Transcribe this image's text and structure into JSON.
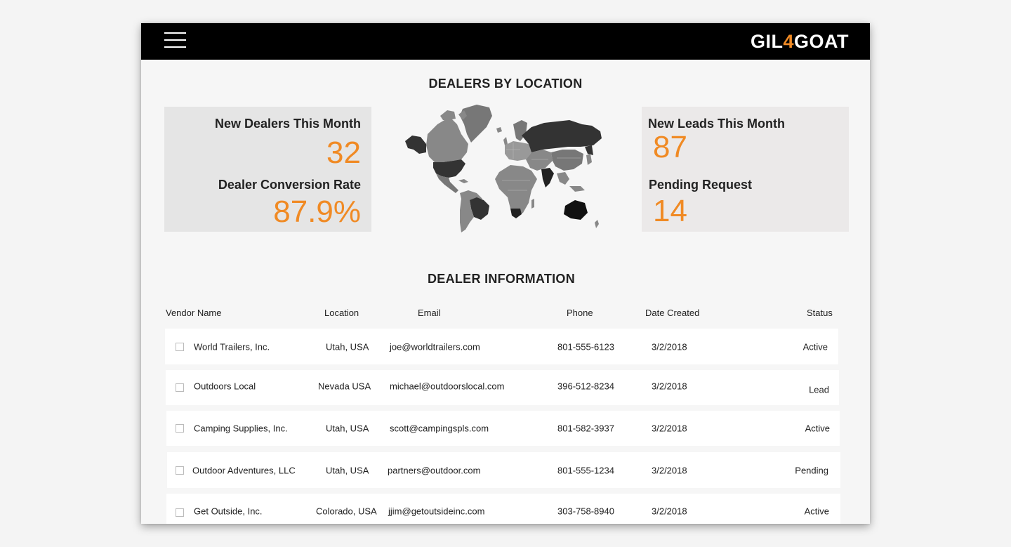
{
  "header": {
    "logo_text_1": "GIL",
    "logo_accent": "4",
    "logo_text_2": "GOAT",
    "menu_icon": "hamburger-icon"
  },
  "dealers_by_location": {
    "title": "DEALERS BY LOCATION",
    "left_panel": {
      "new_dealers_label": "New Dealers This Month",
      "new_dealers_value": "32",
      "conversion_label": "Dealer Conversion Rate",
      "conversion_value": "87.9%"
    },
    "right_panel": {
      "new_leads_label": "New Leads This Month",
      "new_leads_value": "87",
      "pending_label": "Pending Request",
      "pending_value": "14"
    },
    "map_icon": "world-map"
  },
  "dealer_information": {
    "title": "DEALER INFORMATION",
    "columns": [
      "Vendor Name",
      "Location",
      "Email",
      "Phone",
      "Date Created",
      "Status"
    ],
    "rows": [
      {
        "vendor": "World Trailers, Inc.",
        "location": "Utah, USA",
        "email": "joe@worldtrailers.com",
        "phone": "801-555-6123",
        "date": "3/2/2018",
        "status": "Active"
      },
      {
        "vendor": "Outdoors Local",
        "location": "Nevada USA",
        "email": "michael@outdoorslocal.com",
        "phone": "396-512-8234",
        "date": "3/2/2018",
        "status": "Lead"
      },
      {
        "vendor": "Camping Supplies, Inc.",
        "location": "Utah, USA",
        "email": "scott@campingspls.com",
        "phone": "801-582-3937",
        "date": "3/2/2018",
        "status": "Active"
      },
      {
        "vendor": "Outdoor Adventures, LLC",
        "location": "Utah, USA",
        "email": "partners@outdoor.com",
        "phone": "801-555-1234",
        "date": "3/2/2018",
        "status": "Pending"
      },
      {
        "vendor": "Get Outside, Inc.",
        "location": "Colorado, USA",
        "email": "jjim@getoutsideinc.com",
        "phone": "303-758-8940",
        "date": "3/2/2018",
        "status": "Active"
      }
    ]
  },
  "colors": {
    "accent": "#f08a24",
    "topbar": "#000000",
    "panel": "#e6e6e6"
  }
}
